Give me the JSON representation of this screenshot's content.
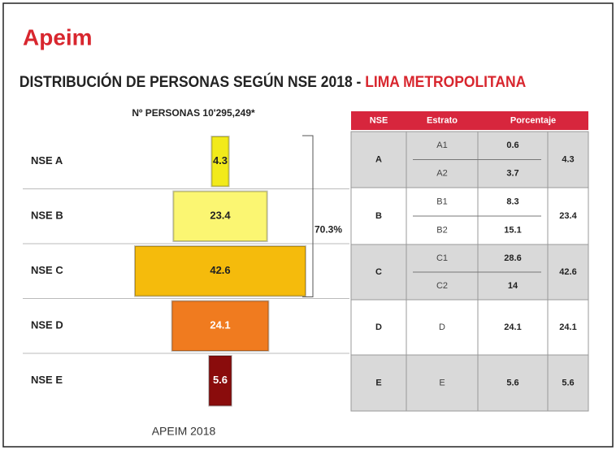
{
  "header": {
    "logo": "Apeim",
    "title": "DISTRIBUCIÓN DE PERSONAS SEGÚN NSE 2018 - ",
    "title_highlight": "LIMA METROPOLITANA"
  },
  "chart_data": {
    "type": "funnel",
    "subtitle": "Nº PERSONAS 10'295,249*",
    "categories": [
      "NSE A",
      "NSE B",
      "NSE C",
      "NSE D",
      "NSE E"
    ],
    "values": [
      4.3,
      23.4,
      42.6,
      24.1,
      5.6
    ],
    "colors": [
      "#f2ea1a",
      "#fbf672",
      "#f5bb0c",
      "#f07b1f",
      "#8a0c0c"
    ],
    "bracket_label": "70.3%",
    "source": "APEIM 2018"
  },
  "table": {
    "columns": [
      "NSE",
      "Estrato",
      "Porcentaje"
    ],
    "groups": [
      {
        "nse": "A",
        "strata": [
          {
            "name": "A1",
            "pct": "0.6"
          },
          {
            "name": "A2",
            "pct": "3.7"
          }
        ],
        "total": "4.3"
      },
      {
        "nse": "B",
        "strata": [
          {
            "name": "B1",
            "pct": "8.3"
          },
          {
            "name": "B2",
            "pct": "15.1"
          }
        ],
        "total": "23.4"
      },
      {
        "nse": "C",
        "strata": [
          {
            "name": "C1",
            "pct": "28.6"
          },
          {
            "name": "C2",
            "pct": "14"
          }
        ],
        "total": "42.6"
      },
      {
        "nse": "D",
        "strata": [
          {
            "name": "D",
            "pct": "24.1"
          }
        ],
        "total": "24.1"
      },
      {
        "nse": "E",
        "strata": [
          {
            "name": "E",
            "pct": "5.6"
          }
        ],
        "total": "5.6"
      }
    ]
  }
}
